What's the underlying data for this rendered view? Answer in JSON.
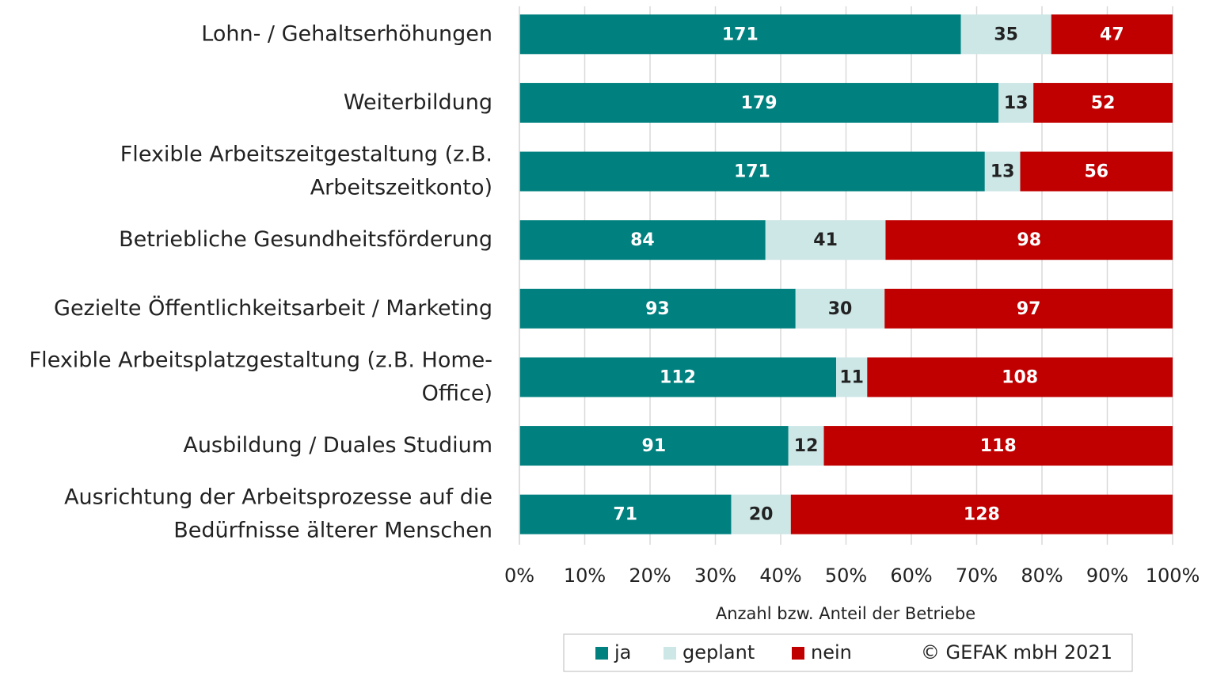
{
  "chart_data": {
    "type": "bar",
    "orientation": "horizontal",
    "stacking": "percent",
    "categories": [
      "Lohn- / Gehaltserhöhungen",
      "Weiterbildung",
      "Flexible Arbeitszeitgestaltung (z.B.\nArbeitszeitkonto)",
      "Betriebliche Gesundheitsförderung",
      "Gezielte Öffentlichkeitsarbeit / Marketing",
      "Flexible Arbeitsplatzgestaltung (z.B. Home-\nOffice)",
      "Ausbildung / Duales Studium",
      "Ausrichtung der Arbeitsprozesse auf die\nBedürfnisse älterer Menschen"
    ],
    "series": [
      {
        "name": "ja",
        "color": "#00807f",
        "values": [
          171,
          179,
          171,
          84,
          93,
          112,
          91,
          71
        ]
      },
      {
        "name": "geplant",
        "color": "#cde6e6",
        "values": [
          35,
          13,
          13,
          41,
          30,
          11,
          12,
          20
        ]
      },
      {
        "name": "nein",
        "color": "#c00000",
        "values": [
          47,
          52,
          56,
          98,
          97,
          108,
          118,
          128
        ]
      }
    ],
    "xlabel": "Anzahl bzw. Anteil der Betriebe",
    "xlim": [
      0,
      100
    ],
    "xticks": [
      {
        "value": 0,
        "label": "0%"
      },
      {
        "value": 10,
        "label": "10%"
      },
      {
        "value": 20,
        "label": "20%"
      },
      {
        "value": 30,
        "label": "30%"
      },
      {
        "value": 40,
        "label": "40%"
      },
      {
        "value": 50,
        "label": "50%"
      },
      {
        "value": 60,
        "label": "60%"
      },
      {
        "value": 70,
        "label": "70%"
      },
      {
        "value": 80,
        "label": "80%"
      },
      {
        "value": 90,
        "label": "90%"
      },
      {
        "value": 100,
        "label": "100%"
      }
    ],
    "grid": true,
    "legend": "bottom",
    "source": "© GEFAK mbH 2021"
  }
}
